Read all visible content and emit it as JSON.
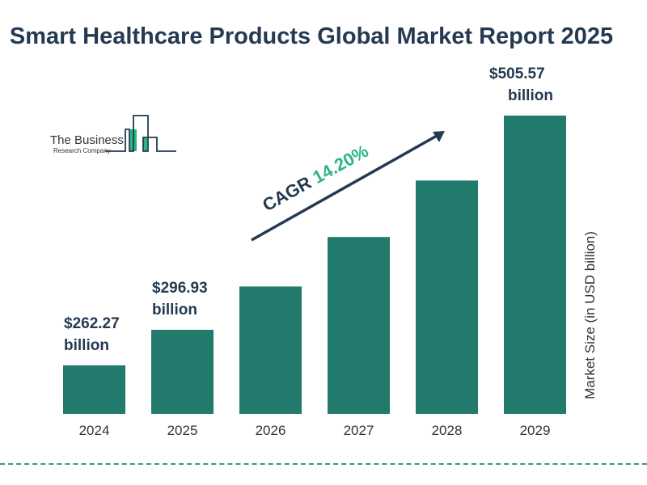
{
  "chart_data": {
    "type": "bar",
    "title": "Smart Healthcare Products Global Market Report 2025",
    "categories": [
      "2024",
      "2025",
      "2026",
      "2027",
      "2028",
      "2029"
    ],
    "values": [
      262.27,
      296.93,
      339.1,
      387.3,
      442.3,
      505.57
    ],
    "data_labels": [
      {
        "index": 0,
        "line1": "$262.27",
        "line2": "billion"
      },
      {
        "index": 1,
        "line1": "$296.93",
        "line2": "billion"
      },
      {
        "index": 5,
        "line1": "$505.57",
        "line2": "billion"
      }
    ],
    "xlabel": "",
    "ylabel": "Market Size (in USD billion)",
    "ylim": [
      215,
      505.57
    ],
    "grid": false,
    "annotation": {
      "label": "CAGR",
      "value": "14.20%"
    },
    "bar_color": "#217a6b",
    "accent_color": "#2bb585"
  },
  "logo": {
    "line1": "The Business",
    "line2": "Research Company"
  }
}
